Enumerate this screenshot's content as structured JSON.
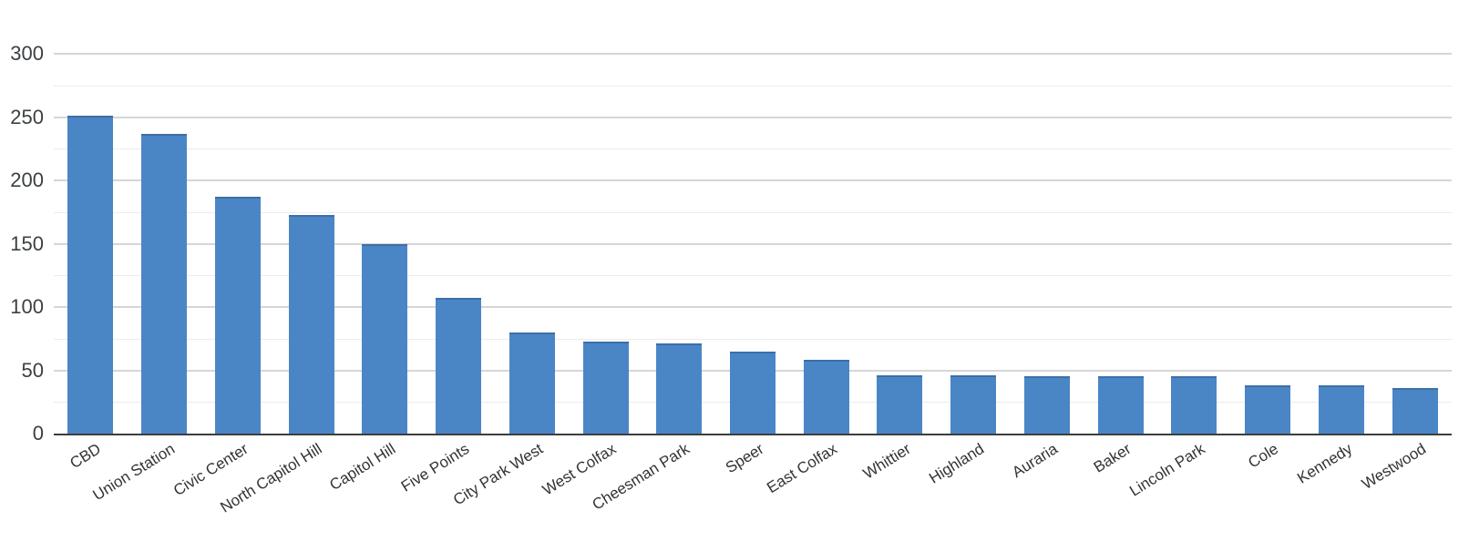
{
  "chart_data": {
    "type": "bar",
    "title": "",
    "xlabel": "",
    "ylabel": "",
    "categories": [
      "CBD",
      "Union Station",
      "Civic Center",
      "North Capitol Hill",
      "Capitol Hill",
      "Five Points",
      "City Park West",
      "West Colfax",
      "Cheesman Park",
      "Speer",
      "East Colfax",
      "Whittier",
      "Highland",
      "Auraria",
      "Baker",
      "Lincoln Park",
      "Cole",
      "Kennedy",
      "Westwood"
    ],
    "values": [
      251,
      237,
      187,
      173,
      150,
      107,
      80,
      73,
      71,
      65,
      58,
      46,
      46,
      45,
      45,
      45,
      38,
      38,
      36
    ],
    "ylim": [
      0,
      300
    ],
    "y_major_step": 50,
    "y_minor_step": 25,
    "y_tick_labels": [
      "0",
      "50",
      "100",
      "150",
      "200",
      "250",
      "300"
    ],
    "grid": "on",
    "legend": "none",
    "colors": {
      "bar": "#4a86c6",
      "grid_major": "#d6d6d6",
      "grid_minor": "#ececec",
      "axis_line": "#3d3d3d",
      "y_tick_text": "#3c4043",
      "x_tick_text": "#333333",
      "background": "#ffffff"
    }
  }
}
